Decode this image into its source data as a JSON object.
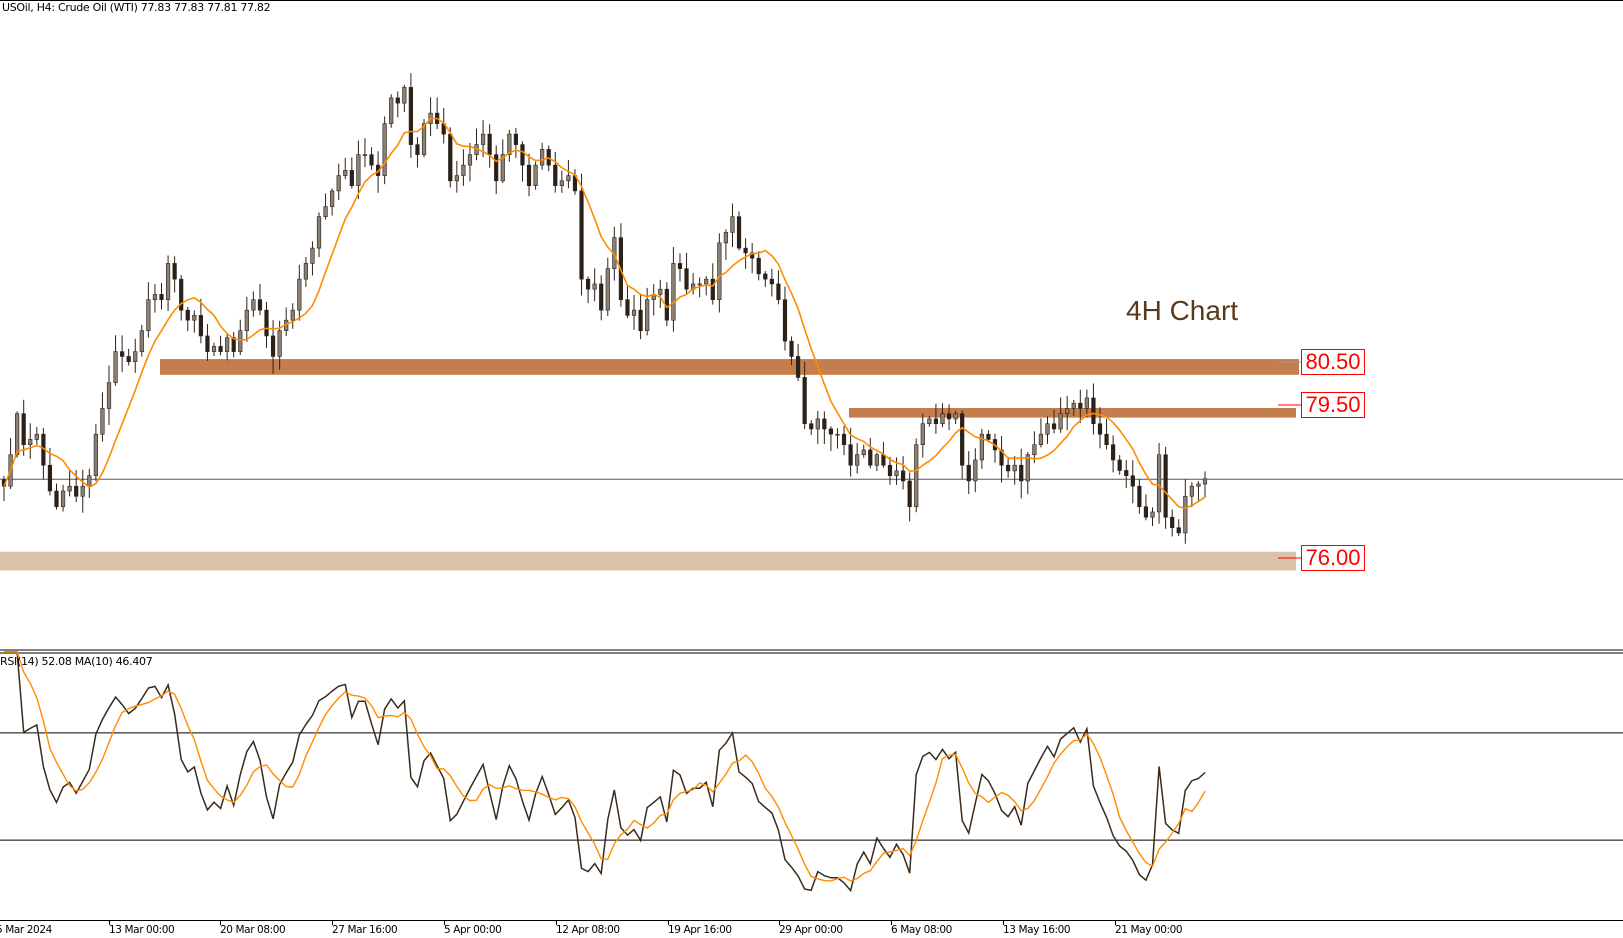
{
  "header": {
    "symbol_line": "USOil, H4:  Crude Oil (WTI)  77.83 77.83 77.81 77.82"
  },
  "annotation": {
    "title": "4H Chart"
  },
  "levels": [
    {
      "label": "80.50",
      "low": 80.2,
      "high": 80.56,
      "color": "#C47E4C"
    },
    {
      "label": "79.50",
      "low": 79.22,
      "high": 79.44,
      "color": "#C47E4C"
    },
    {
      "label": "76.00",
      "low": 75.72,
      "high": 76.15,
      "color": "#D8C2A8"
    }
  ],
  "rsi_header": "RSI(14) 52.08 MA(10) 46.407",
  "colors": {
    "ma_line": "#FF8C00",
    "rsi_line": "#3b2a1a",
    "bear_body": "#2b2118",
    "bull_body": "#8a8073",
    "level_text": "#FF0000"
  },
  "chart_data": {
    "type": "candlestick",
    "instrument": "USOil",
    "timeframe": "H4",
    "current_price": 77.82,
    "ylim": [
      73.9,
      88.78
    ],
    "x_tick_labels": [
      "5 Mar 2024",
      "13 Mar 00:00",
      "20 Mar 08:00",
      "27 Mar 16:00",
      "5 Apr 00:00",
      "12 Apr 08:00",
      "19 Apr 16:00",
      "29 Apr 00:00",
      "6 May 08:00",
      "13 May 16:00",
      "21 May 00:00"
    ],
    "closes": [
      77.65,
      78.37,
      79.31,
      78.6,
      78.72,
      78.84,
      78.13,
      77.54,
      77.18,
      77.54,
      77.65,
      77.42,
      77.65,
      77.89,
      78.84,
      79.43,
      80.02,
      80.73,
      80.62,
      80.5,
      80.73,
      81.21,
      81.92,
      82.04,
      81.92,
      82.75,
      82.39,
      81.68,
      81.45,
      81.56,
      81.09,
      80.73,
      80.85,
      80.73,
      81.05,
      80.73,
      81.21,
      81.68,
      81.92,
      81.68,
      81.09,
      80.62,
      81.21,
      81.45,
      81.68,
      82.39,
      82.75,
      83.1,
      83.82,
      84.05,
      84.41,
      84.76,
      84.88,
      84.53,
      85.24,
      85.24,
      85.0,
      84.76,
      85.95,
      86.54,
      86.42,
      86.78,
      85.47,
      85.24,
      85.95,
      86.19,
      85.95,
      85.71,
      84.64,
      84.76,
      85.0,
      85.24,
      85.47,
      85.71,
      85.24,
      84.64,
      85.24,
      85.71,
      85.47,
      85.0,
      84.53,
      85.0,
      85.36,
      85.0,
      84.53,
      84.64,
      84.76,
      84.41,
      82.39,
      82.16,
      82.28,
      81.68,
      82.63,
      83.34,
      81.92,
      81.56,
      81.68,
      81.21,
      81.92,
      82.04,
      82.16,
      81.45,
      82.75,
      82.63,
      82.16,
      82.28,
      82.28,
      82.39,
      81.92,
      83.22,
      83.46,
      83.82,
      83.1,
      82.99,
      82.87,
      82.51,
      82.39,
      82.28,
      81.92,
      80.97,
      80.62,
      80.14,
      79.08,
      78.96,
      79.19,
      78.96,
      78.84,
      78.84,
      78.6,
      78.13,
      78.37,
      78.48,
      78.13,
      78.37,
      78.13,
      77.89,
      78.0,
      77.77,
      77.18,
      78.6,
      79.08,
      79.19,
      79.08,
      79.31,
      79.19,
      79.31,
      78.13,
      77.77,
      78.25,
      78.84,
      78.72,
      78.48,
      78.13,
      78.0,
      78.13,
      77.77,
      78.37,
      78.6,
      78.84,
      79.08,
      78.96,
      79.31,
      79.43,
      79.55,
      79.43,
      79.67,
      79.08,
      78.84,
      78.6,
      78.25,
      78.01,
      77.89,
      77.65,
      77.18,
      76.94,
      77.06,
      78.37,
      76.94,
      76.7,
      76.58,
      77.42,
      77.65,
      77.7,
      77.82
    ],
    "moving_average": {
      "shown": true
    },
    "rsi": {
      "period": 14,
      "value": 52.08,
      "ma_period": 10,
      "ma_value": 46.407,
      "levels": [
        70,
        30
      ],
      "ylim": [
        0,
        100
      ]
    },
    "grid": false
  }
}
